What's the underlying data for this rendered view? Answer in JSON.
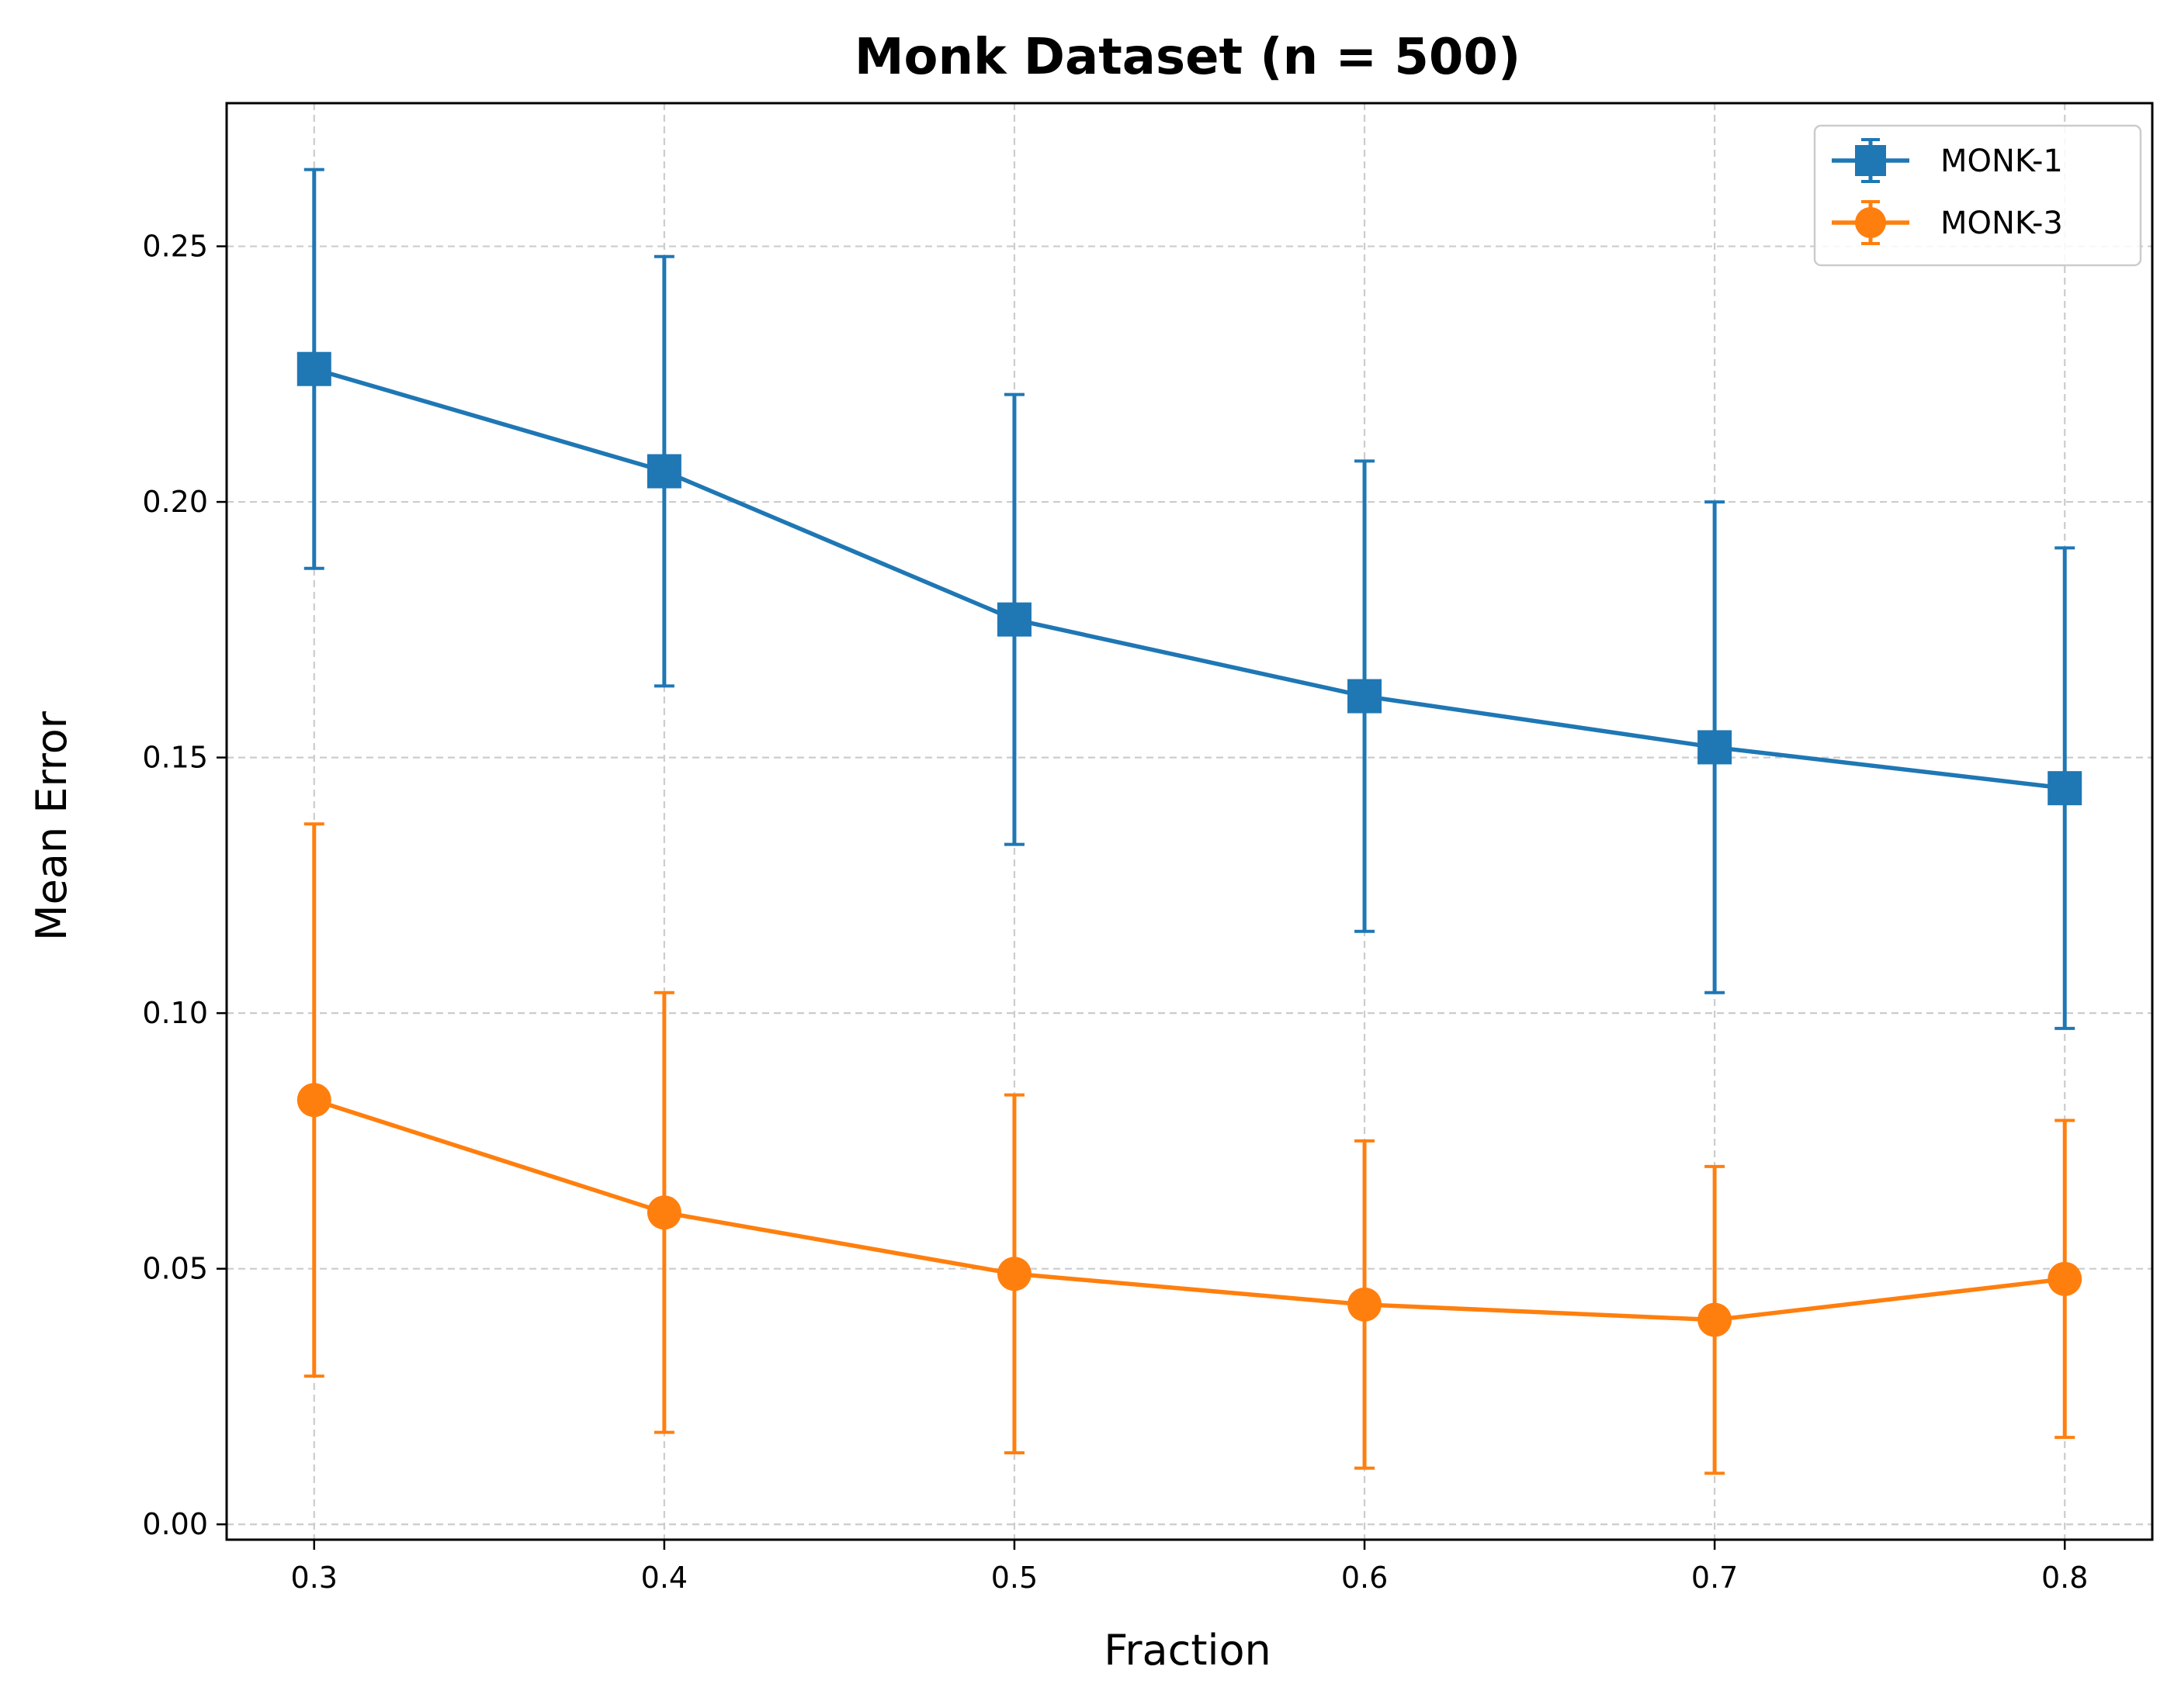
{
  "chart_data": {
    "type": "line",
    "title": "Monk Dataset (n = 500)",
    "xlabel": "Fraction",
    "ylabel": "Mean Error",
    "x": [
      0.3,
      0.4,
      0.5,
      0.6,
      0.7,
      0.8
    ],
    "xticks": [
      "0.3",
      "0.4",
      "0.5",
      "0.6",
      "0.7",
      "0.8"
    ],
    "yticks": [
      "0.00",
      "0.05",
      "0.10",
      "0.15",
      "0.20",
      "0.25"
    ],
    "xlim": [
      0.275,
      0.825
    ],
    "ylim": [
      -0.003,
      0.278
    ],
    "grid": true,
    "legend_position": "top-right",
    "series": [
      {
        "name": "MONK-1",
        "color": "#1f77b4",
        "marker": "square",
        "values": [
          0.226,
          0.206,
          0.177,
          0.162,
          0.152,
          0.144
        ],
        "lower": [
          0.187,
          0.164,
          0.133,
          0.116,
          0.104,
          0.097
        ],
        "upper": [
          0.265,
          0.248,
          0.221,
          0.208,
          0.2,
          0.191
        ]
      },
      {
        "name": "MONK-3",
        "color": "#ff7f0e",
        "marker": "circle",
        "values": [
          0.083,
          0.061,
          0.049,
          0.043,
          0.04,
          0.048
        ],
        "lower": [
          0.029,
          0.018,
          0.014,
          0.011,
          0.01,
          0.017
        ],
        "upper": [
          0.137,
          0.104,
          0.084,
          0.075,
          0.07,
          0.079
        ]
      }
    ]
  }
}
